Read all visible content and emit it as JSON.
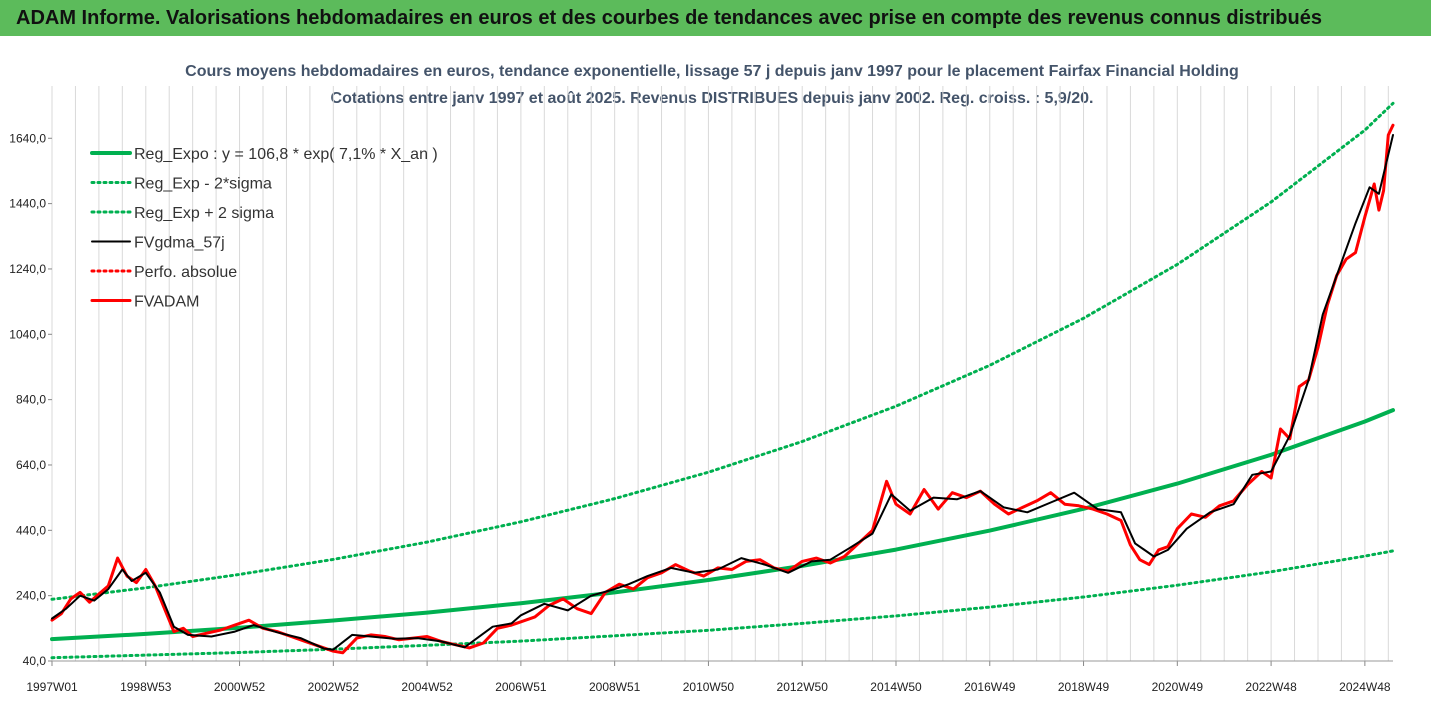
{
  "banner_text": "ADAM Informe. Valorisations hebdomadaires en euros et des courbes de tendances avec prise en compte des revenus connus distribués",
  "colors": {
    "banner": "#5cbb5b",
    "reg_expo": "#00b050",
    "fvgdma": "#000000",
    "fvadam": "#ff0000",
    "title": "#44546a"
  },
  "chart_data": {
    "type": "line",
    "title": "Cours moyens hebdomadaires en euros, tendance exponentielle, lissage 57 j depuis janv 1997 pour le placement Fairfax Financial Holding",
    "subtitle": "Cotations entre janv 1997 et août 2025. Revenus DISTRIBUES depuis janv 2002. Reg. croiss. : 5,9/20.",
    "xlabel": "",
    "ylabel": "",
    "xlim": [
      1997.0,
      2025.6
    ],
    "ylim": [
      40,
      1800
    ],
    "x_ticks": [
      {
        "label": "1997W01",
        "x": 1997.0
      },
      {
        "label": "1998W53",
        "x": 1999.0
      },
      {
        "label": "2000W52",
        "x": 2001.0
      },
      {
        "label": "2002W52",
        "x": 2003.0
      },
      {
        "label": "2004W52",
        "x": 2005.0
      },
      {
        "label": "2006W51",
        "x": 2007.0
      },
      {
        "label": "2008W51",
        "x": 2009.0
      },
      {
        "label": "2010W50",
        "x": 2011.0
      },
      {
        "label": "2012W50",
        "x": 2013.0
      },
      {
        "label": "2014W50",
        "x": 2015.0
      },
      {
        "label": "2016W49",
        "x": 2017.0
      },
      {
        "label": "2018W49",
        "x": 2019.0
      },
      {
        "label": "2020W49",
        "x": 2021.0
      },
      {
        "label": "2022W48",
        "x": 2023.0
      },
      {
        "label": "2024W48",
        "x": 2025.0
      }
    ],
    "y_ticks": [
      {
        "label": "40,0",
        "v": 40
      },
      {
        "label": "240,0",
        "v": 240
      },
      {
        "label": "440,0",
        "v": 440
      },
      {
        "label": "640,0",
        "v": 640
      },
      {
        "label": "840,0",
        "v": 840
      },
      {
        "label": "1040,0",
        "v": 1040
      },
      {
        "label": "1240,0",
        "v": 1240
      },
      {
        "label": "1440,0",
        "v": 1440
      },
      {
        "label": "1640,0",
        "v": 1640
      }
    ],
    "grid": true,
    "legend_position": "top-left",
    "series": [
      {
        "name": "Reg_Expo : y = 106,8 * exp( 7,1% *  X_an )",
        "style": "solid-thick",
        "color": "#00b050",
        "x": [
          1997,
          1999,
          2001,
          2003,
          2005,
          2007,
          2009,
          2011,
          2013,
          2015,
          2017,
          2019,
          2021,
          2023,
          2025,
          2025.6
        ],
        "y": [
          107,
          123,
          142,
          164,
          188,
          217,
          250,
          288,
          331,
          381,
          439,
          506,
          583,
          671,
          773,
          808
        ]
      },
      {
        "name": "Reg_Exp - 2*sigma",
        "style": "dotted",
        "color": "#00b050",
        "x": [
          1997,
          1999,
          2001,
          2003,
          2005,
          2007,
          2009,
          2011,
          2013,
          2015,
          2017,
          2019,
          2021,
          2023,
          2025,
          2025.6
        ],
        "y": [
          50,
          58,
          66,
          76,
          88,
          101,
          117,
          134,
          155,
          178,
          205,
          236,
          272,
          313,
          361,
          377
        ]
      },
      {
        "name": "Reg_Exp + 2 sigma",
        "style": "dotted",
        "color": "#00b050",
        "x": [
          1997,
          1999,
          2001,
          2003,
          2005,
          2007,
          2009,
          2011,
          2013,
          2015,
          2017,
          2019,
          2021,
          2023,
          2025,
          2025.6
        ],
        "y": [
          229,
          264,
          305,
          351,
          404,
          466,
          537,
          618,
          712,
          820,
          945,
          1089,
          1254,
          1445,
          1665,
          1747
        ]
      },
      {
        "name": "FVgdma_57j",
        "style": "solid",
        "color": "#000000",
        "x": [
          1997.0,
          1997.3,
          1997.6,
          1997.9,
          1998.2,
          1998.5,
          1998.7,
          1999.0,
          1999.3,
          1999.6,
          1999.9,
          2000.4,
          2000.9,
          2001.3,
          2001.8,
          2002.3,
          2002.8,
          2003.0,
          2003.4,
          2003.8,
          2004.3,
          2004.8,
          2005.3,
          2005.8,
          2006.4,
          2006.8,
          2007.0,
          2007.5,
          2008.0,
          2008.5,
          2009.0,
          2009.3,
          2009.7,
          2010.2,
          2010.7,
          2011.2,
          2011.7,
          2012.2,
          2012.7,
          2013.2,
          2013.6,
          2014.0,
          2014.5,
          2014.9,
          2015.3,
          2015.8,
          2016.3,
          2016.8,
          2017.3,
          2017.8,
          2018.3,
          2018.8,
          2019.3,
          2019.8,
          2020.1,
          2020.5,
          2020.8,
          2021.2,
          2021.7,
          2022.2,
          2022.6,
          2023.0,
          2023.4,
          2023.8,
          2024.1,
          2024.5,
          2024.8,
          2025.1,
          2025.3,
          2025.6
        ],
        "y": [
          170,
          200,
          240,
          225,
          260,
          320,
          285,
          310,
          250,
          145,
          120,
          115,
          130,
          150,
          128,
          110,
          78,
          75,
          120,
          115,
          108,
          110,
          100,
          82,
          145,
          155,
          180,
          215,
          195,
          240,
          260,
          275,
          300,
          325,
          310,
          320,
          355,
          335,
          310,
          345,
          350,
          385,
          430,
          550,
          500,
          540,
          535,
          560,
          510,
          495,
          525,
          555,
          505,
          495,
          400,
          360,
          380,
          445,
          495,
          520,
          610,
          620,
          730,
          900,
          1100,
          1260,
          1380,
          1490,
          1470,
          1650
        ]
      },
      {
        "name": "Perfo. absolue",
        "style": "dotted",
        "color": "#ff0000",
        "x": [],
        "y": []
      },
      {
        "name": "FVADAM",
        "style": "solid-thick",
        "color": "#ff0000",
        "x": [
          1997.0,
          1997.2,
          1997.4,
          1997.6,
          1997.8,
          1998.0,
          1998.2,
          1998.4,
          1998.6,
          1998.8,
          1999.0,
          1999.2,
          1999.4,
          1999.6,
          1999.8,
          2000.0,
          2000.3,
          2000.6,
          2000.9,
          2001.2,
          2001.5,
          2001.8,
          2002.1,
          2002.4,
          2002.7,
          2003.0,
          2003.2,
          2003.5,
          2003.8,
          2004.1,
          2004.4,
          2004.7,
          2005.0,
          2005.3,
          2005.6,
          2005.9,
          2006.2,
          2006.5,
          2006.8,
          2007.0,
          2007.3,
          2007.6,
          2007.9,
          2008.2,
          2008.5,
          2008.8,
          2009.1,
          2009.4,
          2009.7,
          2010.0,
          2010.3,
          2010.6,
          2010.9,
          2011.2,
          2011.5,
          2011.8,
          2012.1,
          2012.4,
          2012.7,
          2013.0,
          2013.3,
          2013.6,
          2013.9,
          2014.2,
          2014.5,
          2014.8,
          2015.0,
          2015.3,
          2015.6,
          2015.9,
          2016.2,
          2016.5,
          2016.8,
          2017.1,
          2017.4,
          2017.7,
          2018.0,
          2018.3,
          2018.6,
          2018.9,
          2019.2,
          2019.5,
          2019.8,
          2020.0,
          2020.2,
          2020.4,
          2020.6,
          2020.8,
          2021.0,
          2021.3,
          2021.6,
          2021.9,
          2022.2,
          2022.5,
          2022.8,
          2023.0,
          2023.2,
          2023.4,
          2023.6,
          2023.8,
          2024.0,
          2024.2,
          2024.4,
          2024.6,
          2024.8,
          2025.0,
          2025.1,
          2025.2,
          2025.3,
          2025.4,
          2025.5,
          2025.6
        ],
        "y": [
          165,
          185,
          230,
          250,
          220,
          245,
          270,
          355,
          300,
          280,
          320,
          270,
          200,
          130,
          140,
          115,
          125,
          135,
          150,
          165,
          140,
          130,
          115,
          100,
          85,
          70,
          65,
          110,
          120,
          115,
          105,
          110,
          115,
          100,
          90,
          80,
          95,
          140,
          150,
          160,
          175,
          210,
          230,
          200,
          185,
          250,
          275,
          260,
          295,
          310,
          335,
          315,
          300,
          325,
          320,
          345,
          350,
          325,
          315,
          345,
          355,
          340,
          360,
          400,
          440,
          590,
          520,
          490,
          565,
          505,
          555,
          540,
          560,
          520,
          490,
          510,
          530,
          555,
          520,
          515,
          505,
          490,
          470,
          395,
          350,
          335,
          380,
          390,
          445,
          490,
          480,
          515,
          530,
          580,
          620,
          600,
          750,
          720,
          880,
          900,
          1000,
          1130,
          1220,
          1270,
          1290,
          1400,
          1450,
          1500,
          1420,
          1480,
          1650,
          1680
        ]
      }
    ]
  }
}
